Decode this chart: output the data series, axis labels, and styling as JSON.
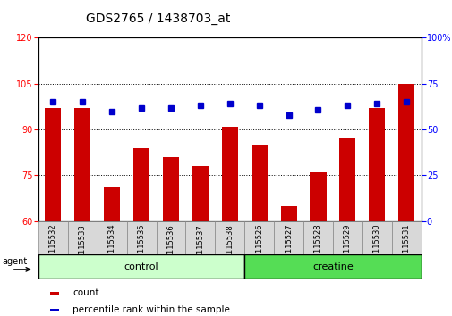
{
  "title": "GDS2765 / 1438703_at",
  "samples": [
    "GSM115532",
    "GSM115533",
    "GSM115534",
    "GSM115535",
    "GSM115536",
    "GSM115537",
    "GSM115538",
    "GSM115526",
    "GSM115527",
    "GSM115528",
    "GSM115529",
    "GSM115530",
    "GSM115531"
  ],
  "counts": [
    97,
    97,
    71,
    84,
    81,
    78,
    91,
    85,
    65,
    76,
    87,
    97,
    105
  ],
  "percentiles": [
    65,
    65,
    60,
    62,
    62,
    63,
    64,
    63,
    58,
    61,
    63,
    64,
    65
  ],
  "n_control": 7,
  "n_creatine": 6,
  "ylim_left": [
    60,
    120
  ],
  "ylim_right": [
    0,
    100
  ],
  "yticks_left": [
    60,
    75,
    90,
    105,
    120
  ],
  "yticks_right": [
    0,
    25,
    50,
    75,
    100
  ],
  "bar_color": "#cc0000",
  "dot_color": "#0000cc",
  "control_color": "#ccffcc",
  "creatine_color": "#55dd55",
  "bar_width": 0.55,
  "agent_label": "agent",
  "legend_count": "count",
  "legend_pct": "percentile rank within the sample",
  "title_fontsize": 10,
  "tick_fontsize": 7,
  "label_fontsize": 8
}
